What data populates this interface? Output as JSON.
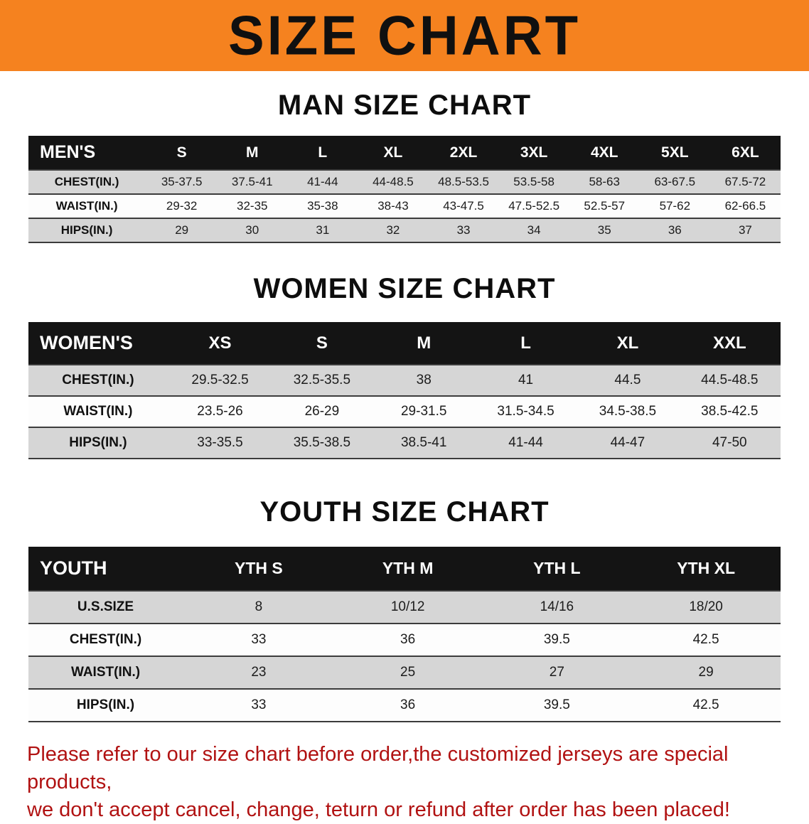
{
  "banner": {
    "title": "SIZE CHART"
  },
  "sections": [
    {
      "heading": "MAN SIZE CHART",
      "table": {
        "header": [
          "MEN'S",
          "S",
          "M",
          "L",
          "XL",
          "2XL",
          "3XL",
          "4XL",
          "5XL",
          "6XL"
        ],
        "rows": [
          {
            "label": "CHEST(IN.)",
            "values": [
              "35-37.5",
              "37.5-41",
              "41-44",
              "44-48.5",
              "48.5-53.5",
              "53.5-58",
              "58-63",
              "63-67.5",
              "67.5-72"
            ]
          },
          {
            "label": "WAIST(IN.)",
            "values": [
              "29-32",
              "32-35",
              "35-38",
              "38-43",
              "43-47.5",
              "47.5-52.5",
              "52.5-57",
              "57-62",
              "62-66.5"
            ]
          },
          {
            "label": "HIPS(IN.)",
            "values": [
              "29",
              "30",
              "31",
              "32",
              "33",
              "34",
              "35",
              "36",
              "37"
            ]
          }
        ]
      }
    },
    {
      "heading": "WOMEN SIZE CHART",
      "table": {
        "header": [
          "WOMEN'S",
          "XS",
          "S",
          "M",
          "L",
          "XL",
          "XXL"
        ],
        "rows": [
          {
            "label": "CHEST(IN.)",
            "values": [
              "29.5-32.5",
              "32.5-35.5",
              "38",
              "41",
              "44.5",
              "44.5-48.5"
            ]
          },
          {
            "label": "WAIST(IN.)",
            "values": [
              "23.5-26",
              "26-29",
              "29-31.5",
              "31.5-34.5",
              "34.5-38.5",
              "38.5-42.5"
            ]
          },
          {
            "label": "HIPS(IN.)",
            "values": [
              "33-35.5",
              "35.5-38.5",
              "38.5-41",
              "41-44",
              "44-47",
              "47-50"
            ]
          }
        ]
      }
    },
    {
      "heading": "YOUTH SIZE CHART",
      "table": {
        "header": [
          "YOUTH",
          "YTH S",
          "YTH M",
          "YTH L",
          "YTH XL"
        ],
        "rows": [
          {
            "label": "U.S.SIZE",
            "values": [
              "8",
              "10/12",
              "14/16",
              "18/20"
            ]
          },
          {
            "label": "CHEST(IN.)",
            "values": [
              "33",
              "36",
              "39.5",
              "42.5"
            ]
          },
          {
            "label": "WAIST(IN.)",
            "values": [
              "23",
              "25",
              "27",
              "29"
            ]
          },
          {
            "label": "HIPS(IN.)",
            "values": [
              "33",
              "36",
              "39.5",
              "42.5"
            ]
          }
        ]
      }
    }
  ],
  "footer": {
    "line1": "Please refer to our size chart before order,the customized jerseys are special products,",
    "line2": "we don't accept cancel, change, teturn or refund after order has been placed!"
  },
  "colors": {
    "banner_background": "#f5821f",
    "table_header_background": "#141414",
    "alt_row_background": "#d6d6d6",
    "footer_text": "#b11212"
  }
}
